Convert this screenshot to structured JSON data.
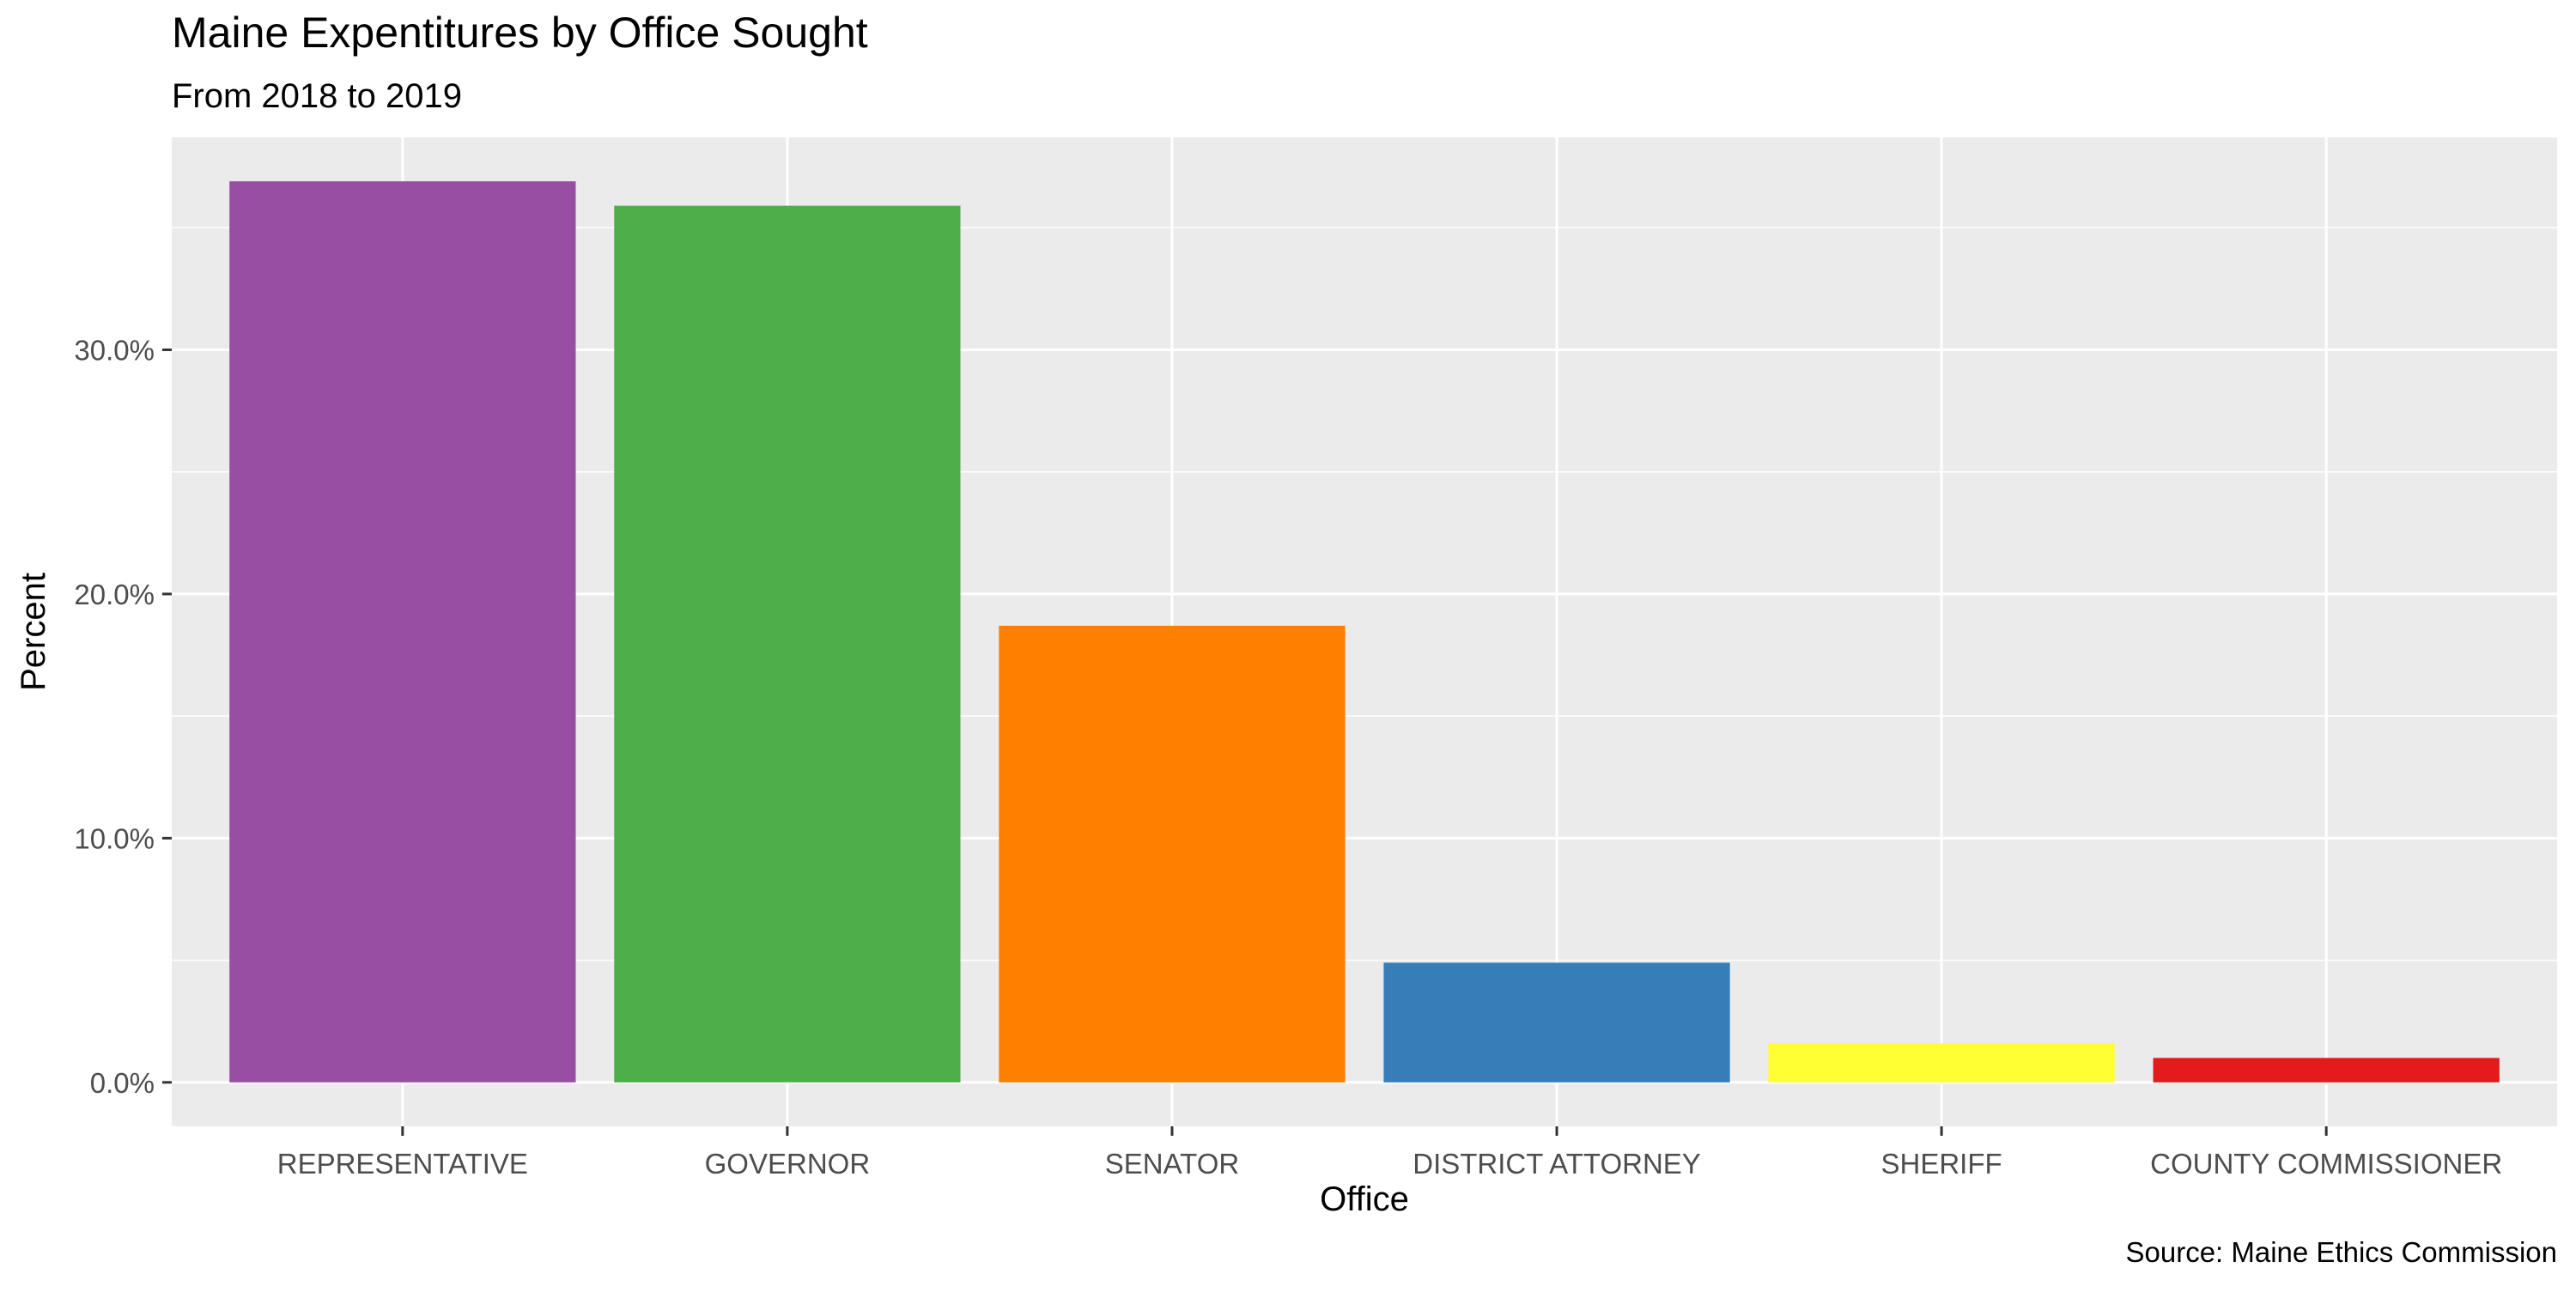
{
  "chart_data": {
    "type": "bar",
    "title": "Maine Expentitures by Office Sought",
    "subtitle": "From 2018 to 2019",
    "xlabel": "Office",
    "ylabel": "Percent",
    "caption": "Source: Maine Ethics Commission",
    "categories": [
      "REPRESENTATIVE",
      "GOVERNOR",
      "SENATOR",
      "DISTRICT ATTORNEY",
      "SHERIFF",
      "COUNTY COMMISSIONER"
    ],
    "values": [
      36.9,
      35.9,
      18.7,
      4.9,
      1.6,
      1.0
    ],
    "colors": [
      "#984EA3",
      "#4DAF4A",
      "#FF7F00",
      "#377EB8",
      "#FFFF33",
      "#E41A1C"
    ],
    "ylim": [
      -1.8,
      38.7
    ],
    "yticks": [
      0,
      10,
      20,
      30
    ],
    "ytick_labels": [
      "0.0%",
      "10.0%",
      "20.0%",
      "30.0%"
    ],
    "grid": true,
    "legend": "none",
    "panel_background": "#EBEBEB",
    "grid_color": "#FFFFFF"
  }
}
